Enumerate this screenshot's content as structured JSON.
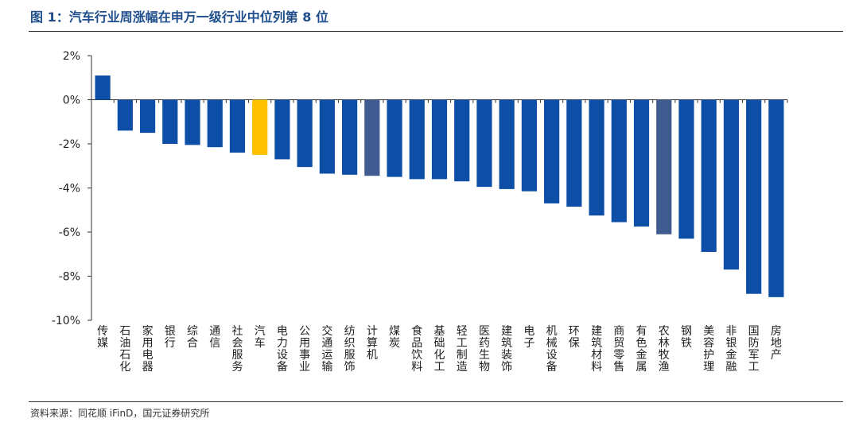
{
  "figure_title": "图 1：汽车行业周涨幅在申万一级行业中位列第 8 位",
  "source_note": "资料来源：同花顺 iFinD，国元证券研究所",
  "colors": {
    "default_bar": "#0d4ea6",
    "highlight_bar": "#ffc000",
    "muted_bar": "#3f5b8f",
    "title": "#1f4e8c"
  },
  "chart_data": {
    "type": "bar",
    "categories": [
      "传媒",
      "石油石化",
      "家用电器",
      "银行",
      "综合",
      "通信",
      "社会服务",
      "汽车",
      "电力设备",
      "公用事业",
      "交通运输",
      "纺织服饰",
      "计算机",
      "煤炭",
      "食品饮料",
      "基础化工",
      "轻工制造",
      "医药生物",
      "建筑装饰",
      "电子",
      "机械设备",
      "环保",
      "建筑材料",
      "商贸零售",
      "有色金属",
      "农林牧渔",
      "钢铁",
      "美容护理",
      "非银金融",
      "国防军工",
      "房地产"
    ],
    "values": [
      1.1,
      -1.4,
      -1.5,
      -2.0,
      -2.05,
      -2.15,
      -2.4,
      -2.5,
      -2.7,
      -3.05,
      -3.35,
      -3.4,
      -3.45,
      -3.5,
      -3.6,
      -3.6,
      -3.7,
      -3.95,
      -4.05,
      -4.15,
      -4.7,
      -4.85,
      -5.25,
      -5.55,
      -5.75,
      -6.1,
      -6.3,
      -6.9,
      -7.7,
      -8.8,
      -8.95
    ],
    "highlight": [
      "default",
      "default",
      "default",
      "default",
      "default",
      "default",
      "default",
      "highlight",
      "default",
      "default",
      "default",
      "default",
      "muted",
      "default",
      "default",
      "default",
      "default",
      "default",
      "default",
      "default",
      "default",
      "default",
      "default",
      "default",
      "default",
      "muted",
      "default",
      "default",
      "default",
      "default",
      "default"
    ],
    "yticks": [
      "2%",
      "0%",
      "-2%",
      "-4%",
      "-6%",
      "-8%",
      "-10%"
    ],
    "ytick_values": [
      2,
      0,
      -2,
      -4,
      -6,
      -8,
      -10
    ],
    "ylim": [
      -10,
      2
    ],
    "xlabel": "",
    "ylabel": "",
    "grid": false,
    "legend": "none"
  }
}
